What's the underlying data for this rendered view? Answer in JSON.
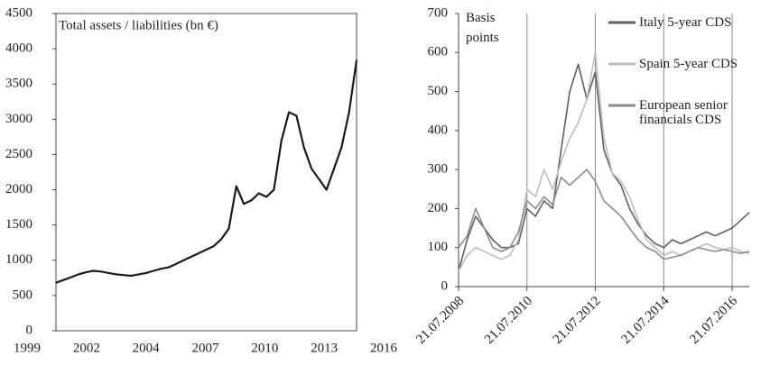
{
  "chart_data": [
    {
      "type": "line",
      "annotation": "Total assets / liabilities (bn €)",
      "categories": [
        "1999",
        null,
        null,
        null,
        null,
        null,
        null,
        "2002",
        null,
        null,
        null,
        null,
        null,
        "2004",
        null,
        null,
        null,
        null,
        null,
        null,
        "2007",
        null,
        null,
        null,
        null,
        null,
        null,
        "2010",
        null,
        null,
        null,
        null,
        null,
        "2013",
        null,
        null,
        null,
        null,
        null,
        null,
        "2016"
      ],
      "series": [
        {
          "name": null,
          "color": "#1a1a1a",
          "values": [
            680,
            720,
            760,
            800,
            830,
            850,
            840,
            820,
            800,
            790,
            780,
            800,
            820,
            850,
            880,
            900,
            950,
            1000,
            1050,
            1100,
            1150,
            1200,
            1300,
            1450,
            2050,
            1800,
            1850,
            1950,
            1900,
            2000,
            2700,
            3100,
            3050,
            2600,
            2300,
            2150,
            2000,
            2300,
            2600,
            3100,
            3840
          ]
        }
      ],
      "ylim": [
        0,
        4500
      ],
      "yticks": [
        0,
        500,
        1000,
        1500,
        2000,
        2500,
        3000,
        3500,
        4000,
        4500
      ],
      "grid": false,
      "frame": true
    },
    {
      "type": "line",
      "annotation": "Basis points",
      "categories": [
        "21.07.2008",
        null,
        null,
        null,
        null,
        null,
        null,
        null,
        "21.07.2010",
        null,
        null,
        null,
        null,
        null,
        null,
        null,
        "21.07.2012",
        null,
        null,
        null,
        null,
        null,
        null,
        null,
        "21.07.2014",
        null,
        null,
        null,
        null,
        null,
        null,
        null,
        "21.07.2016",
        null,
        null
      ],
      "series": [
        {
          "name": "Italy 5-year CDS",
          "color": "#606060",
          "values": [
            40,
            120,
            180,
            150,
            120,
            100,
            100,
            110,
            200,
            180,
            220,
            200,
            350,
            500,
            570,
            480,
            550,
            350,
            290,
            260,
            200,
            160,
            130,
            110,
            100,
            120,
            110,
            120,
            130,
            140,
            130,
            140,
            150,
            170,
            190
          ]
        },
        {
          "name": "Spain 5-year CDS",
          "color": "#bdbdbd",
          "values": [
            40,
            80,
            100,
            90,
            80,
            70,
            80,
            120,
            250,
            230,
            300,
            250,
            320,
            380,
            420,
            480,
            600,
            380,
            290,
            270,
            230,
            170,
            120,
            100,
            80,
            90,
            80,
            90,
            100,
            110,
            100,
            95,
            100,
            90,
            85
          ]
        },
        {
          "name": "European senior financials CDS",
          "color": "#8c8c8c",
          "values": [
            100,
            130,
            200,
            150,
            100,
            90,
            100,
            140,
            220,
            200,
            230,
            210,
            280,
            260,
            280,
            300,
            270,
            220,
            200,
            180,
            150,
            120,
            100,
            90,
            70,
            75,
            80,
            90,
            100,
            95,
            90,
            95,
            90,
            85,
            90
          ]
        }
      ],
      "ylim": [
        0,
        700
      ],
      "yticks": [
        0,
        100,
        200,
        300,
        400,
        500,
        600,
        700
      ],
      "grid": "x",
      "frame": false,
      "legend": "upper right"
    }
  ]
}
